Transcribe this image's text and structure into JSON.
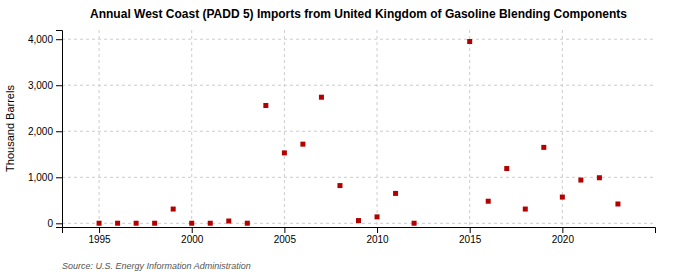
{
  "chart_data": {
    "type": "scatter",
    "title": "Annual West Coast (PADD 5) Imports from United Kingdom of Gasoline Blending Components",
    "ylabel": "Thousand Barrels",
    "annotations": [
      "Source: U.S. Energy Information Administration"
    ],
    "x": [
      1995,
      1996,
      1997,
      1998,
      1999,
      2000,
      2001,
      2002,
      2003,
      2004,
      2005,
      2006,
      2007,
      2008,
      2009,
      2010,
      2011,
      2012,
      2015,
      2016,
      2017,
      2018,
      2019,
      2020,
      2021,
      2022,
      2023
    ],
    "values": [
      2,
      2,
      2,
      2,
      310,
      2,
      2,
      50,
      2,
      2560,
      1530,
      1720,
      2740,
      820,
      60,
      140,
      650,
      2,
      3950,
      480,
      1190,
      310,
      1650,
      570,
      940,
      990,
      420
    ],
    "color": "#b30000",
    "marker": "square",
    "xlim": [
      1993,
      2025
    ],
    "ylim": [
      -80,
      4200
    ],
    "xticks": [
      1995,
      2000,
      2005,
      2010,
      2015,
      2020
    ],
    "yticks": [
      0,
      {
        "value": 1000,
        "label": "1,000"
      },
      {
        "value": 2000,
        "label": "2,000"
      },
      {
        "value": 3000,
        "label": "3,000"
      },
      {
        "value": 4000,
        "label": "4,000"
      }
    ],
    "grid": true
  }
}
